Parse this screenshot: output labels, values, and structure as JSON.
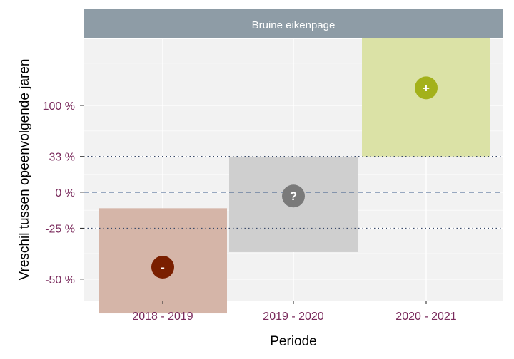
{
  "chart_data": {
    "type": "interval",
    "facet_label": "Bruine eikenpage",
    "xlabel": "Periode",
    "ylabel": "Vreschil tussen opeenvolgende jaren",
    "y_scale": "log-ratio",
    "y_ticks": [
      {
        "value": -50,
        "label": "-50 %"
      },
      {
        "value": -25,
        "label": "-25 %"
      },
      {
        "value": 0,
        "label": "0 %"
      },
      {
        "value": 33,
        "label": "33 %"
      },
      {
        "value": 100,
        "label": "100 %"
      }
    ],
    "reference_lines": [
      {
        "value": -25,
        "style": "dotted",
        "color": "#3a4a6a"
      },
      {
        "value": 0,
        "style": "dashed",
        "color": "#3a5a8a"
      },
      {
        "value": 33,
        "style": "dotted",
        "color": "#3a4a6a"
      }
    ],
    "categories": [
      "2018 - 2019",
      "2019 - 2020",
      "2020 - 2021"
    ],
    "estimates": [
      {
        "period": "2018 - 2019",
        "estimate": -45,
        "lower": -62,
        "upper": -12,
        "symbol": "-",
        "point_color": "#7a1f00",
        "box_color": "#d5b5a8"
      },
      {
        "period": "2019 - 2020",
        "estimate": -3,
        "lower": -38,
        "upper": 33,
        "symbol": "?",
        "point_color": "#7a7a7a",
        "box_color": "#cfcfcf"
      },
      {
        "period": "2020 - 2021",
        "estimate": 130,
        "lower": 33,
        "upper": 295,
        "symbol": "+",
        "point_color": "#a3b11a",
        "box_color": "#dbe2a6"
      }
    ]
  }
}
